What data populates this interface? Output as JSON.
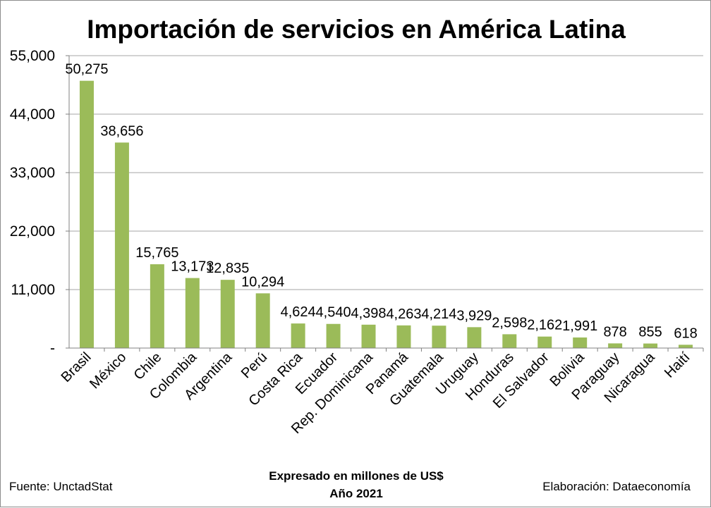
{
  "chart_data": {
    "type": "bar",
    "title": "Importación de servicios en América Latina",
    "categories": [
      "Brasil",
      "México",
      "Chile",
      "Colombia",
      "Argentina",
      "Perú",
      "Costa Rica",
      "Ecuador",
      "Rep. Dominicana",
      "Panamá",
      "Guatemala",
      "Uruguay",
      "Honduras",
      "El Salvador",
      "Bolivia",
      "Paraguay",
      "Nicaragua",
      "Haití"
    ],
    "values": [
      50275,
      38656,
      15765,
      13173,
      12835,
      10294,
      4624,
      4540,
      4398,
      4263,
      4214,
      3929,
      2598,
      2162,
      1991,
      878,
      855,
      618
    ],
    "data_labels": [
      "50,275",
      "38,656",
      "15,765",
      "13,173",
      "12,835",
      "10,294",
      "4,624",
      "4,540",
      "4,398",
      "4,263",
      "4,214",
      "3,929",
      "2,598",
      "2,162",
      "1,991",
      "878",
      "855",
      "618"
    ],
    "ylim": [
      0,
      55000
    ],
    "yticks": [
      0,
      11000,
      22000,
      33000,
      44000,
      55000
    ],
    "ytick_labels": [
      "-",
      "11,000",
      "22,000",
      "33,000",
      "44,000",
      "55,000"
    ],
    "grid": true,
    "bar_color": "#9bbb59",
    "xlabel": "",
    "ylabel": ""
  },
  "footer": {
    "source": "Fuente: UnctadStat",
    "note_line1": "Expresado en millones de US$",
    "note_line2": "Año 2021",
    "credit": "Elaboración: Dataeconomía"
  }
}
